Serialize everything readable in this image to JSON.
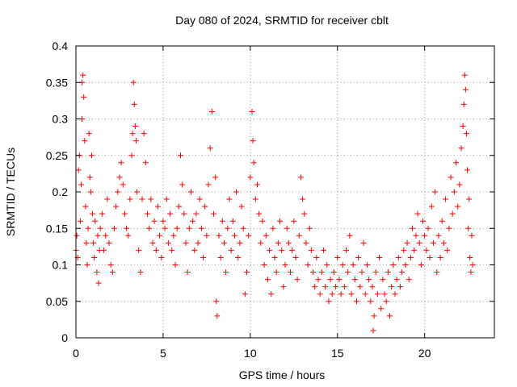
{
  "chart_data": {
    "type": "scatter",
    "title": "Day 080 of 2024, SRMTID for receiver cblt",
    "xlabel": "GPS time / hours",
    "ylabel": "SRMTID / TECUs",
    "xlim": [
      0,
      24
    ],
    "ylim": [
      0,
      0.4
    ],
    "xticks": [
      0,
      5,
      10,
      15,
      20
    ],
    "yticks": [
      0,
      0.05,
      0.1,
      0.15,
      0.2,
      0.25,
      0.3,
      0.35,
      0.4
    ],
    "xtick_labels": [
      "0",
      "5",
      "10",
      "15",
      "20"
    ],
    "ytick_labels": [
      "0",
      "0.05",
      "0.1",
      "0.15",
      "0.2",
      "0.25",
      "0.3",
      "0.35",
      "0.4"
    ],
    "grid": true,
    "marker": "plus",
    "color": "#ff0000",
    "series": [
      {
        "name": "",
        "points": [
          [
            0.0,
            0.12
          ],
          [
            0.05,
            0.14
          ],
          [
            0.1,
            0.11
          ],
          [
            0.15,
            0.23
          ],
          [
            0.2,
            0.25
          ],
          [
            0.25,
            0.16
          ],
          [
            0.3,
            0.21
          ],
          [
            0.35,
            0.35
          ],
          [
            0.35,
            0.3
          ],
          [
            0.4,
            0.36
          ],
          [
            0.45,
            0.33
          ],
          [
            0.5,
            0.27
          ],
          [
            0.55,
            0.18
          ],
          [
            0.6,
            0.13
          ],
          [
            0.65,
            0.1
          ],
          [
            0.7,
            0.15
          ],
          [
            0.75,
            0.28
          ],
          [
            0.8,
            0.22
          ],
          [
            0.85,
            0.2
          ],
          [
            0.9,
            0.25
          ],
          [
            0.95,
            0.17
          ],
          [
            1.0,
            0.13
          ],
          [
            1.05,
            0.11
          ],
          [
            1.1,
            0.16
          ],
          [
            1.2,
            0.09
          ],
          [
            1.25,
            0.14
          ],
          [
            1.3,
            0.075
          ],
          [
            1.35,
            0.12
          ],
          [
            1.4,
            0.15
          ],
          [
            1.5,
            0.17
          ],
          [
            1.6,
            0.12
          ],
          [
            1.7,
            0.14
          ],
          [
            1.8,
            0.19
          ],
          [
            1.9,
            0.13
          ],
          [
            2.0,
            0.1
          ],
          [
            2.1,
            0.09
          ],
          [
            2.2,
            0.15
          ],
          [
            2.3,
            0.18
          ],
          [
            2.4,
            0.2
          ],
          [
            2.5,
            0.22
          ],
          [
            2.6,
            0.24
          ],
          [
            2.7,
            0.21
          ],
          [
            2.8,
            0.17
          ],
          [
            2.9,
            0.15
          ],
          [
            3.0,
            0.14
          ],
          [
            3.1,
            0.19
          ],
          [
            3.2,
            0.25
          ],
          [
            3.25,
            0.28
          ],
          [
            3.3,
            0.35
          ],
          [
            3.35,
            0.32
          ],
          [
            3.4,
            0.29
          ],
          [
            3.45,
            0.27
          ],
          [
            3.5,
            0.2
          ],
          [
            3.6,
            0.12
          ],
          [
            3.7,
            0.09
          ],
          [
            3.8,
            0.19
          ],
          [
            3.9,
            0.28
          ],
          [
            4.0,
            0.24
          ],
          [
            4.1,
            0.17
          ],
          [
            4.2,
            0.15
          ],
          [
            4.3,
            0.19
          ],
          [
            4.4,
            0.13
          ],
          [
            4.5,
            0.16
          ],
          [
            4.6,
            0.12
          ],
          [
            4.7,
            0.18
          ],
          [
            4.8,
            0.14
          ],
          [
            4.9,
            0.11
          ],
          [
            5.0,
            0.16
          ],
          [
            5.1,
            0.15
          ],
          [
            5.2,
            0.19
          ],
          [
            5.3,
            0.13
          ],
          [
            5.4,
            0.17
          ],
          [
            5.5,
            0.12
          ],
          [
            5.6,
            0.14
          ],
          [
            5.7,
            0.1
          ],
          [
            5.8,
            0.15
          ],
          [
            5.9,
            0.18
          ],
          [
            6.0,
            0.25
          ],
          [
            6.1,
            0.21
          ],
          [
            6.2,
            0.17
          ],
          [
            6.3,
            0.13
          ],
          [
            6.4,
            0.09
          ],
          [
            6.5,
            0.15
          ],
          [
            6.6,
            0.2
          ],
          [
            6.7,
            0.16
          ],
          [
            6.8,
            0.12
          ],
          [
            6.9,
            0.17
          ],
          [
            7.0,
            0.13
          ],
          [
            7.1,
            0.19
          ],
          [
            7.2,
            0.15
          ],
          [
            7.3,
            0.11
          ],
          [
            7.4,
            0.18
          ],
          [
            7.5,
            0.14
          ],
          [
            7.6,
            0.21
          ],
          [
            7.7,
            0.26
          ],
          [
            7.8,
            0.31
          ],
          [
            7.9,
            0.17
          ],
          [
            8.0,
            0.22
          ],
          [
            8.05,
            0.05
          ],
          [
            8.1,
            0.03
          ],
          [
            8.2,
            0.14
          ],
          [
            8.3,
            0.11
          ],
          [
            8.4,
            0.16
          ],
          [
            8.5,
            0.13
          ],
          [
            8.6,
            0.09
          ],
          [
            8.7,
            0.15
          ],
          [
            8.8,
            0.19
          ],
          [
            8.9,
            0.12
          ],
          [
            9.0,
            0.16
          ],
          [
            9.1,
            0.14
          ],
          [
            9.2,
            0.2
          ],
          [
            9.3,
            0.11
          ],
          [
            9.4,
            0.13
          ],
          [
            9.5,
            0.18
          ],
          [
            9.6,
            0.15
          ],
          [
            9.7,
            0.06
          ],
          [
            9.8,
            0.09
          ],
          [
            9.9,
            0.14
          ],
          [
            10.0,
            0.22
          ],
          [
            10.1,
            0.31
          ],
          [
            10.15,
            0.27
          ],
          [
            10.2,
            0.24
          ],
          [
            10.3,
            0.19
          ],
          [
            10.4,
            0.21
          ],
          [
            10.5,
            0.17
          ],
          [
            10.6,
            0.13
          ],
          [
            10.7,
            0.16
          ],
          [
            10.8,
            0.1
          ],
          [
            10.9,
            0.14
          ],
          [
            11.0,
            0.08
          ],
          [
            11.1,
            0.12
          ],
          [
            11.2,
            0.06
          ],
          [
            11.3,
            0.15
          ],
          [
            11.4,
            0.11
          ],
          [
            11.5,
            0.09
          ],
          [
            11.6,
            0.13
          ],
          [
            11.7,
            0.16
          ],
          [
            11.8,
            0.12
          ],
          [
            11.9,
            0.07
          ],
          [
            12.0,
            0.1
          ],
          [
            12.1,
            0.15
          ],
          [
            12.2,
            0.13
          ],
          [
            12.3,
            0.09
          ],
          [
            12.4,
            0.12
          ],
          [
            12.5,
            0.16
          ],
          [
            12.6,
            0.11
          ],
          [
            12.7,
            0.08
          ],
          [
            12.8,
            0.14
          ],
          [
            12.9,
            0.22
          ],
          [
            13.0,
            0.19
          ],
          [
            13.1,
            0.17
          ],
          [
            13.2,
            0.13
          ],
          [
            13.3,
            0.1
          ],
          [
            13.4,
            0.15
          ],
          [
            13.5,
            0.12
          ],
          [
            13.6,
            0.09
          ],
          [
            13.7,
            0.07
          ],
          [
            13.8,
            0.11
          ],
          [
            13.9,
            0.08
          ],
          [
            14.0,
            0.06
          ],
          [
            14.1,
            0.09
          ],
          [
            14.2,
            0.12
          ],
          [
            14.3,
            0.07
          ],
          [
            14.4,
            0.1
          ],
          [
            14.5,
            0.05
          ],
          [
            14.6,
            0.08
          ],
          [
            14.7,
            0.06
          ],
          [
            14.8,
            0.09
          ],
          [
            14.9,
            0.07
          ],
          [
            15.0,
            0.11
          ],
          [
            15.1,
            0.08
          ],
          [
            15.2,
            0.06
          ],
          [
            15.3,
            0.1
          ],
          [
            15.4,
            0.07
          ],
          [
            15.5,
            0.12
          ],
          [
            15.6,
            0.09
          ],
          [
            15.7,
            0.14
          ],
          [
            15.8,
            0.06
          ],
          [
            15.9,
            0.1
          ],
          [
            16.0,
            0.08
          ],
          [
            16.1,
            0.05
          ],
          [
            16.2,
            0.11
          ],
          [
            16.3,
            0.07
          ],
          [
            16.4,
            0.09
          ],
          [
            16.5,
            0.13
          ],
          [
            16.6,
            0.06
          ],
          [
            16.7,
            0.1
          ],
          [
            16.8,
            0.08
          ],
          [
            16.9,
            0.05
          ],
          [
            17.0,
            0.07
          ],
          [
            17.05,
            0.01
          ],
          [
            17.1,
            0.03
          ],
          [
            17.2,
            0.09
          ],
          [
            17.3,
            0.06
          ],
          [
            17.4,
            0.11
          ],
          [
            17.5,
            0.04
          ],
          [
            17.6,
            0.08
          ],
          [
            17.7,
            0.06
          ],
          [
            17.8,
            0.05
          ],
          [
            17.9,
            0.09
          ],
          [
            18.0,
            0.03
          ],
          [
            18.1,
            0.07
          ],
          [
            18.2,
            0.1
          ],
          [
            18.3,
            0.06
          ],
          [
            18.4,
            0.08
          ],
          [
            18.5,
            0.11
          ],
          [
            18.6,
            0.07
          ],
          [
            18.7,
            0.09
          ],
          [
            18.8,
            0.12
          ],
          [
            18.9,
            0.1
          ],
          [
            19.0,
            0.13
          ],
          [
            19.1,
            0.08
          ],
          [
            19.2,
            0.11
          ],
          [
            19.3,
            0.15
          ],
          [
            19.4,
            0.12
          ],
          [
            19.5,
            0.14
          ],
          [
            19.6,
            0.17
          ],
          [
            19.7,
            0.13
          ],
          [
            19.8,
            0.1
          ],
          [
            19.9,
            0.16
          ],
          [
            20.0,
            0.14
          ],
          [
            20.1,
            0.12
          ],
          [
            20.2,
            0.15
          ],
          [
            20.3,
            0.11
          ],
          [
            20.4,
            0.18
          ],
          [
            20.5,
            0.13
          ],
          [
            20.6,
            0.2
          ],
          [
            20.7,
            0.09
          ],
          [
            20.8,
            0.14
          ],
          [
            20.9,
            0.11
          ],
          [
            21.0,
            0.16
          ],
          [
            21.1,
            0.13
          ],
          [
            21.2,
            0.19
          ],
          [
            21.3,
            0.12
          ],
          [
            21.4,
            0.15
          ],
          [
            21.5,
            0.22
          ],
          [
            21.6,
            0.17
          ],
          [
            21.7,
            0.2
          ],
          [
            21.8,
            0.24
          ],
          [
            21.9,
            0.18
          ],
          [
            22.0,
            0.21
          ],
          [
            22.1,
            0.26
          ],
          [
            22.2,
            0.29
          ],
          [
            22.25,
            0.32
          ],
          [
            22.3,
            0.36
          ],
          [
            22.35,
            0.34
          ],
          [
            22.4,
            0.28
          ],
          [
            22.45,
            0.23
          ],
          [
            22.5,
            0.15
          ],
          [
            22.55,
            0.19
          ],
          [
            22.6,
            0.11
          ],
          [
            22.65,
            0.09
          ],
          [
            22.7,
            0.14
          ],
          [
            22.75,
            0.1
          ]
        ]
      }
    ]
  }
}
